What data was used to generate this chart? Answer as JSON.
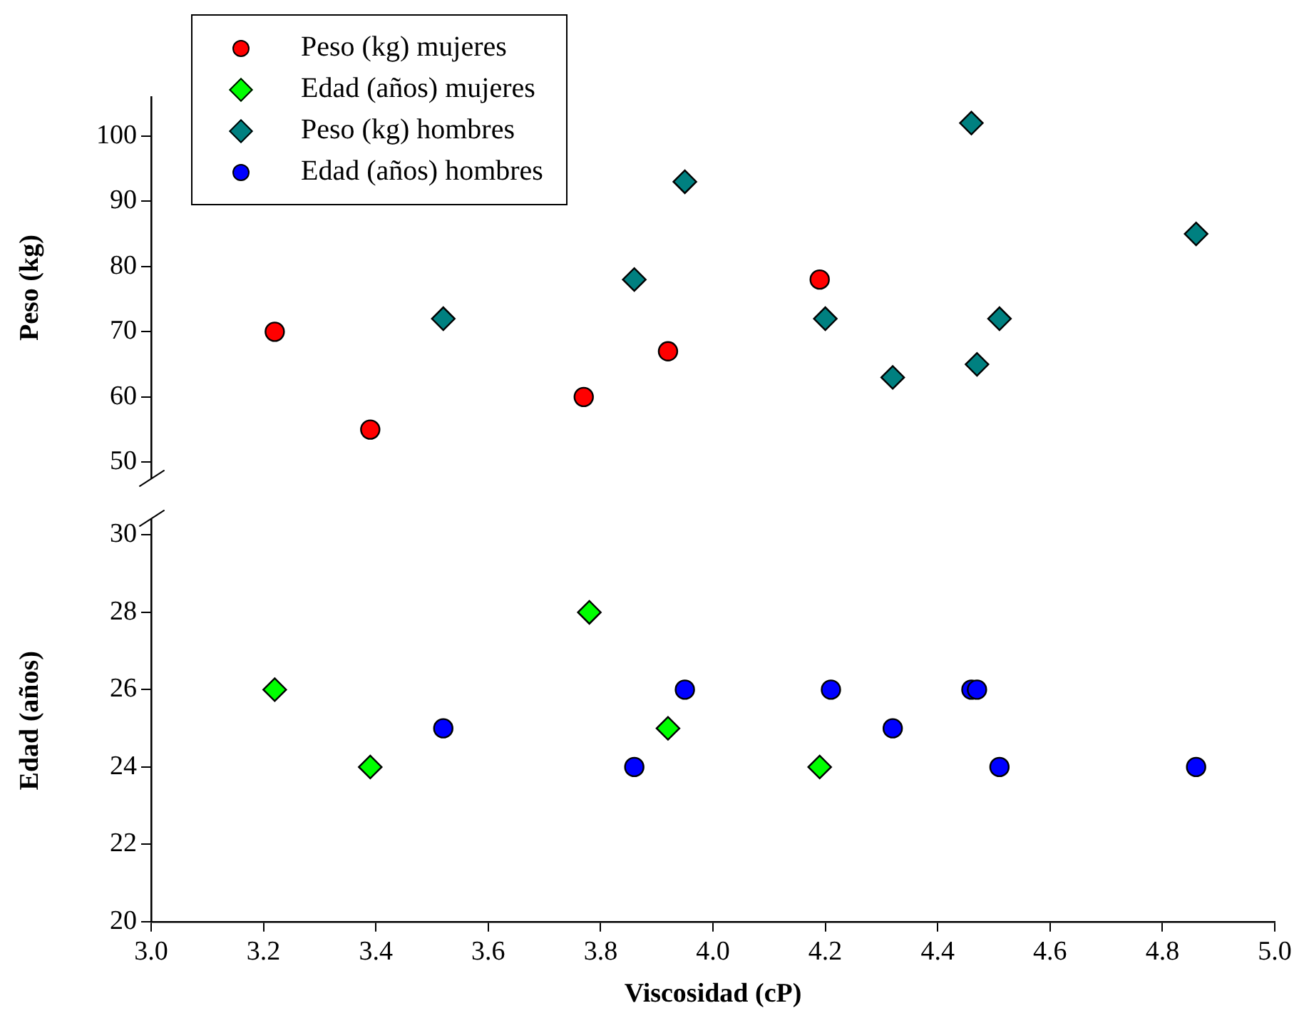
{
  "chart_data": [
    {
      "type": "scatter",
      "ylabel": "Peso (kg)",
      "tick_labels": "y",
      "xlim": [
        3.0,
        5.0
      ],
      "ylim": [
        47.5,
        106
      ],
      "yticks": [
        50,
        60,
        70,
        80,
        90,
        100
      ],
      "legend": "top left",
      "series": [
        {
          "name": "Peso (kg) mujeres",
          "color": "#ff0000",
          "marker": "circle",
          "x": [
            3.22,
            3.39,
            3.77,
            3.92,
            4.19
          ],
          "values": [
            70,
            55,
            60,
            67,
            78
          ]
        },
        {
          "name": "Peso (kg) hombres",
          "color": "#008080",
          "marker": "diamond",
          "x": [
            3.52,
            3.86,
            3.95,
            4.2,
            4.32,
            4.46,
            4.47,
            4.51,
            4.86
          ],
          "values": [
            72,
            78,
            93,
            72,
            63,
            102,
            65,
            72,
            85
          ]
        }
      ]
    },
    {
      "type": "scatter",
      "xlabel": "Viscosidad (cP)",
      "ylabel": "Edad (años)",
      "xlim": [
        3.0,
        5.0
      ],
      "xticks": [
        {
          "value": 3.0,
          "label": "3.0"
        },
        3.2,
        3.4,
        3.6,
        3.8,
        {
          "value": 4.0,
          "label": "4.0"
        },
        4.2,
        4.4,
        4.6,
        4.8,
        {
          "value": 5.0,
          "label": "5.0"
        }
      ],
      "ylim": [
        20,
        30.4
      ],
      "yticks": [
        20,
        22,
        24,
        26,
        28,
        30
      ],
      "legend": "top left",
      "series": [
        {
          "name": "Edad (años) mujeres",
          "color": "#00ff00",
          "marker": "diamond",
          "x": [
            3.22,
            3.39,
            3.78,
            3.92,
            4.19
          ],
          "values": [
            26,
            24,
            28,
            25,
            24
          ]
        },
        {
          "name": "Edad (años) hombres",
          "color": "#0000ff",
          "marker": "circle",
          "x": [
            3.52,
            3.86,
            3.95,
            4.21,
            4.32,
            4.46,
            4.47,
            4.51,
            4.86
          ],
          "values": [
            25,
            24,
            26,
            26,
            25,
            26,
            26,
            24,
            24
          ]
        }
      ]
    }
  ]
}
